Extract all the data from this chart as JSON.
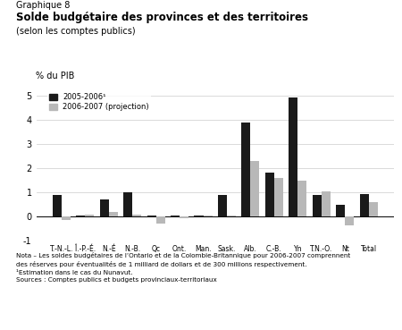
{
  "categories": [
    "T.-N.-L.",
    "Î.-P.-É.",
    "N.-É",
    "N.-B.",
    "Qc",
    "Ont.",
    "Man.",
    "Sask.",
    "Alb.",
    "C.-B.",
    "Yn",
    "T.N.-O.",
    "Nt",
    "Total"
  ],
  "series1_label": "2005-2006¹",
  "series2_label": "2006-2007 (projection)",
  "series1_values": [
    0.9,
    0.05,
    0.7,
    1.02,
    0.05,
    0.05,
    0.05,
    0.9,
    3.9,
    1.8,
    4.9,
    0.9,
    0.5,
    0.95
  ],
  "series2_values": [
    -0.15,
    0.08,
    0.2,
    0.1,
    -0.3,
    -0.05,
    0.05,
    0.05,
    2.3,
    1.6,
    1.5,
    1.05,
    -0.35,
    0.6
  ],
  "series1_color": "#1a1a1a",
  "series2_color": "#b8b8b8",
  "ylim": [
    -1.0,
    5.4
  ],
  "yticks": [
    -1,
    0,
    1,
    2,
    3,
    4,
    5
  ],
  "title_line1": "Graphique 8",
  "title_line2": "Solde budgétaire des provinces et des territoires",
  "title_line3": "(selon les comptes publics)",
  "ylabel": "% du PIB",
  "nota_text": "Nota – Les soldes budgétaires de l’Ontario et de la Colombie-Britannique pour 2006-2007 comprennent\ndes réserves pour éventualités de 1 milliard de dollars et de 300 millions respectivement.\n¹Estimation dans le cas du Nunavut.\nSources : Comptes publics et budgets provinciaux-territoriaux",
  "background_color": "#ffffff",
  "bar_width": 0.38,
  "grid_color": "#cccccc"
}
